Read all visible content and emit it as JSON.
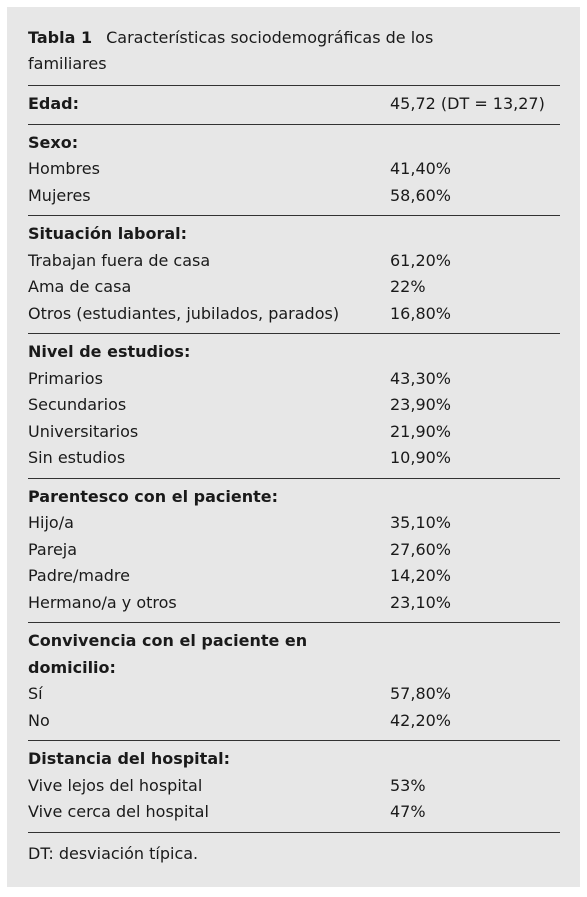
{
  "table": {
    "label": "Tabla 1",
    "title": "Características sociodemográficas de los familiares",
    "sections": [
      {
        "heading": "Edad:",
        "value": "45,72 (DT = 13,27)"
      },
      {
        "heading": "Sexo:",
        "rows": [
          [
            "Hombres",
            "41,40%"
          ],
          [
            "Mujeres",
            "58,60%"
          ]
        ]
      },
      {
        "heading": "Situación laboral:",
        "rows": [
          [
            "Trabajan fuera de casa",
            "61,20%"
          ],
          [
            "Ama de casa",
            "22%"
          ],
          [
            "Otros (estudiantes, jubilados, parados)",
            "16,80%"
          ]
        ]
      },
      {
        "heading": "Nivel de estudios:",
        "rows": [
          [
            "Primarios",
            "43,30%"
          ],
          [
            "Secundarios",
            "23,90%"
          ],
          [
            "Universitarios",
            "21,90%"
          ],
          [
            "Sin estudios",
            "10,90%"
          ]
        ]
      },
      {
        "heading": "Parentesco con el paciente:",
        "rows": [
          [
            "Hijo/a",
            "35,10%"
          ],
          [
            "Pareja",
            "27,60%"
          ],
          [
            "Padre/madre",
            "14,20%"
          ],
          [
            "Hermano/a y otros",
            "23,10%"
          ]
        ]
      },
      {
        "heading": "Convivencia con el paciente en domicilio:",
        "rows": [
          [
            "Sí",
            "57,80%"
          ],
          [
            "No",
            "42,20%"
          ]
        ]
      },
      {
        "heading": "Distancia del hospital:",
        "rows": [
          [
            "Vive lejos del hospital",
            "53%"
          ],
          [
            "Vive cerca del hospital",
            "47%"
          ]
        ]
      }
    ],
    "footnote": "DT: desviación típica."
  }
}
